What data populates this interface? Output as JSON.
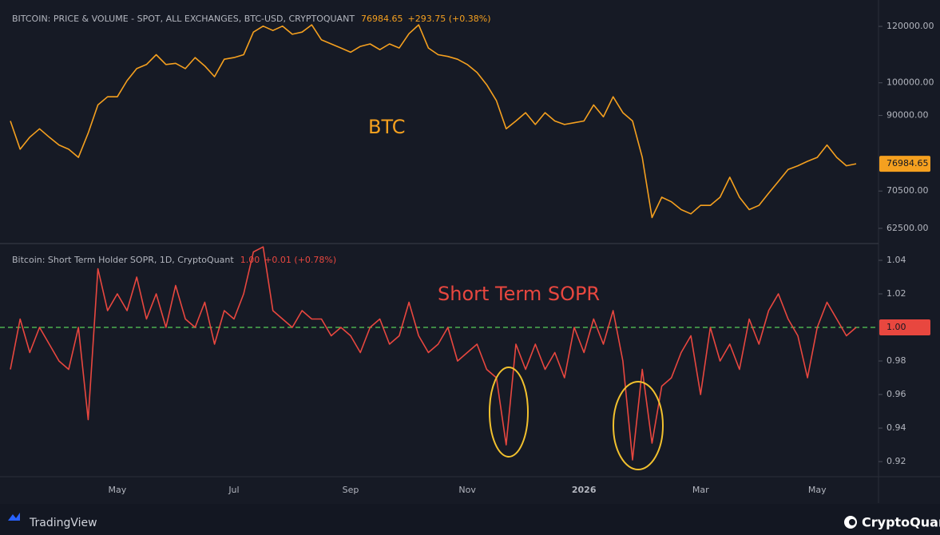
{
  "chart_data": [
    {
      "type": "line",
      "title": "BITCOIN: PRICE & VOLUME - SPOT, ALL EXCHANGES, BTC-USD, CRYPTOQUANT",
      "change": "+293.75 (+0.38%)",
      "annotation": "BTC",
      "color": "#f5a01f",
      "log": true,
      "last_value": 76984.65,
      "ylim": [
        59500,
        129000
      ],
      "yticks": [
        {
          "value": 120000,
          "label": "120000.00"
        },
        {
          "value": 100000,
          "label": "100000.00"
        },
        {
          "value": 90000,
          "label": "90000.00"
        },
        {
          "value": 70500,
          "label": "70500.00"
        },
        {
          "value": 62500,
          "label": "62500.00"
        }
      ],
      "values": [
        88400,
        80700,
        83900,
        86200,
        83900,
        81800,
        80700,
        78600,
        85000,
        93100,
        95600,
        95600,
        100700,
        104700,
        106100,
        109500,
        106100,
        106500,
        104700,
        108500,
        105600,
        102000,
        107900,
        108500,
        109500,
        117800,
        120100,
        118400,
        120100,
        117000,
        117800,
        120600,
        114900,
        113400,
        111900,
        110400,
        112500,
        113400,
        111300,
        113400,
        111900,
        117200,
        120600,
        111900,
        109500,
        108900,
        107900,
        106100,
        103400,
        99400,
        94400,
        86200,
        88400,
        90800,
        87400,
        90800,
        88400,
        87400,
        87900,
        88400,
        93100,
        89600,
        95600,
        90800,
        88400,
        78600,
        64700,
        69100,
        68100,
        66400,
        65500,
        67300,
        67300,
        69100,
        73700,
        69100,
        66400,
        67300,
        70000,
        72700,
        75600,
        76500,
        77600,
        78600,
        81800,
        78600,
        76500,
        76984.65
      ]
    },
    {
      "type": "line",
      "title": "Bitcoin: Short Term Holder SOPR, 1D, CryptoQuant",
      "change": "+0.01 (+0.78%)",
      "annotation": "Short Term SOPR",
      "color": "#e8473f",
      "log": false,
      "last_value": {
        "value": 1,
        "label": "1.00"
      },
      "reference_line": 1,
      "reference_color": "#4caf50",
      "ylim": [
        0.911,
        1.05
      ],
      "yticks": [
        1.04,
        1.02,
        0.98,
        0.96,
        0.94,
        0.92
      ],
      "categories": [
        null,
        null,
        null,
        null,
        null,
        null,
        null,
        null,
        null,
        null,
        null,
        "May",
        null,
        null,
        null,
        null,
        null,
        null,
        null,
        null,
        null,
        null,
        null,
        "Jul",
        null,
        null,
        null,
        null,
        null,
        null,
        null,
        null,
        null,
        null,
        null,
        "Sep",
        null,
        null,
        null,
        null,
        null,
        null,
        null,
        null,
        null,
        null,
        null,
        "Nov",
        null,
        null,
        null,
        null,
        null,
        null,
        null,
        null,
        null,
        null,
        null,
        "2026",
        null,
        null,
        null,
        null,
        null,
        null,
        null,
        null,
        null,
        null,
        null,
        "Mar",
        null,
        null,
        null,
        null,
        null,
        null,
        null,
        null,
        null,
        null,
        null,
        "May",
        null,
        null,
        null,
        null
      ],
      "values": [
        0.975,
        1.005,
        0.985,
        1.0,
        0.99,
        0.98,
        0.975,
        1.0,
        0.945,
        1.035,
        1.01,
        1.02,
        1.01,
        1.03,
        1.005,
        1.02,
        1.0,
        1.025,
        1.005,
        1.0,
        1.015,
        0.99,
        1.01,
        1.005,
        1.02,
        1.045,
        1.048,
        1.01,
        1.005,
        1.0,
        1.01,
        1.005,
        1.005,
        0.995,
        1.0,
        0.995,
        0.985,
        1.0,
        1.005,
        0.99,
        0.995,
        1.015,
        0.995,
        0.985,
        0.99,
        1.0,
        0.98,
        0.985,
        0.99,
        0.975,
        0.97,
        0.93,
        0.99,
        0.975,
        0.99,
        0.975,
        0.985,
        0.97,
        1.0,
        0.985,
        1.005,
        0.99,
        1.01,
        0.98,
        0.921,
        0.975,
        0.931,
        0.965,
        0.97,
        0.985,
        0.995,
        0.96,
        1.0,
        0.98,
        0.99,
        0.975,
        1.005,
        0.99,
        1.01,
        1.02,
        1.005,
        0.995,
        0.97,
        1.0,
        1.015,
        1.005,
        0.995,
        1.0
      ]
    }
  ],
  "footer": {
    "left": "TradingView",
    "right": "CryptoQuant"
  }
}
